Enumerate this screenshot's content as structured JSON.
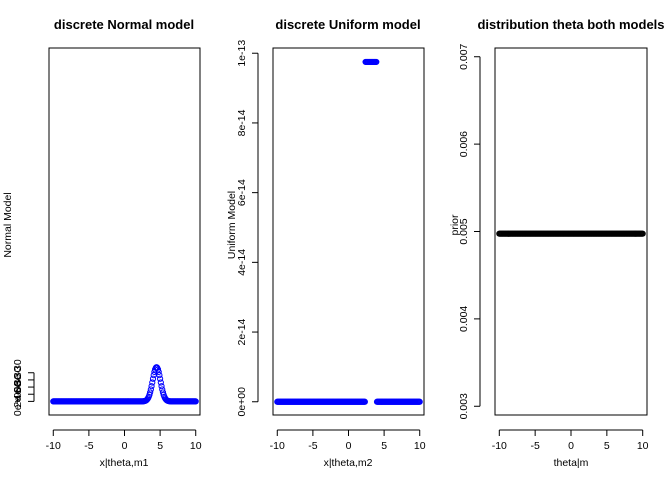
{
  "chart_data": [
    {
      "type": "scatter",
      "title": "discrete Normal model",
      "xlabel": "x|theta,m1",
      "ylabel": "Normal Model",
      "xlim": [
        -10.6,
        10.6
      ],
      "ylim": [
        -3.8e-30,
        9.87e-29
      ],
      "x_ticks": [
        -10,
        -5,
        0,
        5,
        10
      ],
      "x_tick_labels": [
        "-10",
        "-5",
        "0",
        "5",
        "10"
      ],
      "y_ticks": [
        0,
        2e-30,
        4e-30,
        6e-30,
        8e-30
      ],
      "y_tick_labels": [
        "0e+00",
        "2e-30",
        "4e-30",
        "6e-30",
        "8e-30"
      ],
      "marker": "open-circle",
      "color": "#0000ff",
      "grid": false,
      "legend": "none",
      "distribution": {
        "family": "normal",
        "mean": 4.5,
        "sd": 0.55,
        "peak": 9.55e-30,
        "x_from": -10,
        "x_to": 10,
        "step": 0.1
      }
    },
    {
      "type": "scatter",
      "title": "discrete Uniform model",
      "xlabel": "x|theta,m2",
      "ylabel": "Uniform Model",
      "xlim": [
        -10.6,
        10.6
      ],
      "ylim": [
        -3.8e-15,
        1.015e-13
      ],
      "x_ticks": [
        -10,
        -5,
        0,
        5,
        10
      ],
      "x_tick_labels": [
        "-10",
        "-5",
        "0",
        "5",
        "10"
      ],
      "y_ticks": [
        0,
        2e-14,
        4e-14,
        6e-14,
        8e-14,
        1e-13
      ],
      "y_tick_labels": [
        "0e+00",
        "2e-14",
        "4e-14",
        "6e-14",
        "8e-14",
        "1e-13"
      ],
      "marker": "open-circle",
      "color": "#0000ff",
      "grid": false,
      "legend": "none",
      "distribution": {
        "family": "uniform",
        "lower": 2.4,
        "upper": 3.9,
        "height": 9.75e-14,
        "x_from": -10,
        "x_to": 10,
        "step": 0.1
      }
    },
    {
      "type": "scatter",
      "title": "distribution theta both models",
      "xlabel": "theta|m",
      "ylabel": "prior",
      "xlim": [
        -10.6,
        10.6
      ],
      "ylim": [
        0.0029,
        0.0071
      ],
      "x_ticks": [
        -10,
        -5,
        0,
        5,
        10
      ],
      "x_tick_labels": [
        "-10",
        "-5",
        "0",
        "5",
        "10"
      ],
      "y_ticks": [
        0.003,
        0.004,
        0.005,
        0.006,
        0.007
      ],
      "y_tick_labels": [
        "0.003",
        "0.004",
        "0.005",
        "0.006",
        "0.007"
      ],
      "marker": "open-circle",
      "color": "#000000",
      "grid": false,
      "legend": "none",
      "distribution": {
        "family": "constant",
        "value": 0.004975,
        "x_from": -10,
        "x_to": 10,
        "step": 0.1
      }
    }
  ]
}
